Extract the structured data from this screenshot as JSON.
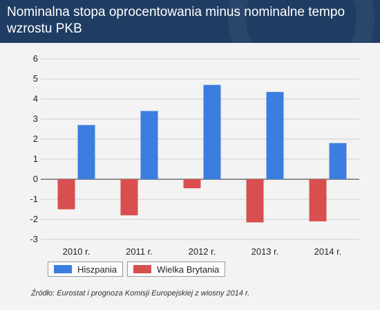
{
  "title": "Nominalna stopa oprocentowania minus nominalne tempo wzrostu PKB",
  "source": "Źródło: Eurostat i prognoza Komisji Europejskiej z wiosny 2014 r.",
  "colors": {
    "hiszpania": "#3b7ee0",
    "wielka_brytania": "#d94f4f",
    "header": "#1f3d63"
  },
  "chart_data": {
    "type": "bar",
    "title": "Nominalna stopa oprocentowania minus nominalne tempo wzrostu PKB",
    "categories": [
      "2010 r.",
      "2011 r.",
      "2012 r.",
      "2013 r.",
      "2014 r."
    ],
    "series": [
      {
        "name": "Hiszpania",
        "values": [
          2.7,
          3.4,
          4.7,
          4.35,
          1.8
        ]
      },
      {
        "name": "Wielka Brytania",
        "values": [
          -1.5,
          -1.8,
          -0.45,
          -2.15,
          -2.1
        ]
      }
    ],
    "yticks": [
      "6",
      "5",
      "4",
      "3",
      "2",
      "1",
      "0",
      "-1",
      "-2",
      "-3"
    ],
    "ylim": [
      -3,
      6
    ],
    "grid": "horizontal",
    "legend_position": "bottom-left",
    "xlabel": "",
    "ylabel": ""
  }
}
